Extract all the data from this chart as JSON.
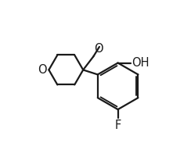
{
  "background_color": "#ffffff",
  "line_color": "#1a1a1a",
  "line_width": 1.6,
  "text_color": "#1a1a1a",
  "font_size": 10.5,
  "xlim": [
    0,
    10
  ],
  "ylim": [
    0,
    8
  ]
}
